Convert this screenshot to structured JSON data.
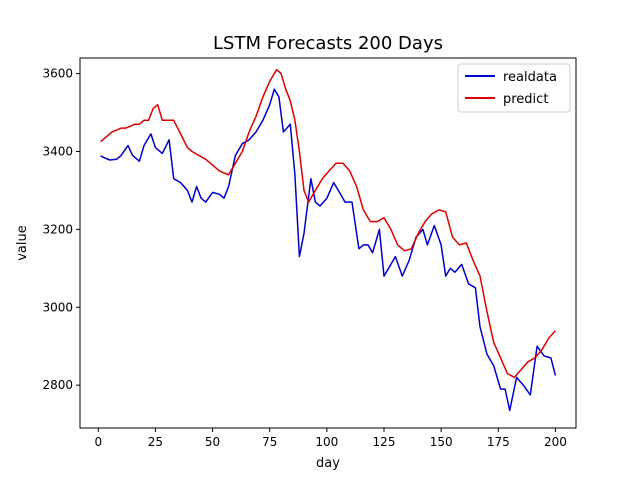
{
  "chart_data": {
    "type": "line",
    "title": "LSTM Forecasts 200 Days",
    "xlabel": "day",
    "ylabel": "value",
    "xlim": [
      -8,
      209
    ],
    "ylim": [
      2690,
      3640
    ],
    "xticks": [
      0,
      25,
      50,
      75,
      100,
      125,
      150,
      175,
      200
    ],
    "yticks": [
      2800,
      3000,
      3200,
      3400,
      3600
    ],
    "legend_position": "top-right",
    "series": [
      {
        "name": "realdata",
        "color": "#0000cc",
        "x": [
          1,
          5,
          8,
          10,
          13,
          15,
          18,
          20,
          23,
          25,
          28,
          31,
          33,
          36,
          39,
          41,
          43,
          45,
          47,
          50,
          53,
          55,
          57,
          60,
          63,
          66,
          69,
          72,
          75,
          77,
          79,
          81,
          84,
          86,
          88,
          90,
          93,
          95,
          97,
          100,
          103,
          106,
          108,
          111,
          114,
          116,
          118,
          120,
          123,
          125,
          127,
          130,
          133,
          136,
          139,
          142,
          144,
          147,
          150,
          152,
          154,
          156,
          159,
          162,
          165,
          167,
          170,
          173,
          176,
          178,
          180,
          183,
          186,
          189,
          192,
          195,
          198,
          200
        ],
        "y": [
          3388,
          3378,
          3380,
          3390,
          3415,
          3390,
          3375,
          3415,
          3445,
          3410,
          3395,
          3430,
          3330,
          3320,
          3300,
          3270,
          3310,
          3280,
          3270,
          3295,
          3290,
          3280,
          3310,
          3390,
          3420,
          3430,
          3450,
          3480,
          3520,
          3560,
          3540,
          3450,
          3470,
          3340,
          3130,
          3190,
          3330,
          3270,
          3260,
          3280,
          3320,
          3290,
          3270,
          3270,
          3150,
          3160,
          3160,
          3140,
          3200,
          3080,
          3100,
          3130,
          3080,
          3120,
          3180,
          3200,
          3160,
          3210,
          3160,
          3080,
          3100,
          3090,
          3110,
          3060,
          3050,
          2950,
          2880,
          2850,
          2790,
          2790,
          2735,
          2820,
          2800,
          2775,
          2900,
          2875,
          2870,
          2825
        ]
      },
      {
        "name": "predict",
        "color": "#dd0000",
        "x": [
          1,
          4,
          6,
          8,
          10,
          12,
          14,
          16,
          18,
          20,
          22,
          24,
          26,
          28,
          30,
          33,
          36,
          39,
          41,
          44,
          47,
          50,
          53,
          55,
          57,
          60,
          63,
          66,
          69,
          72,
          75,
          78,
          80,
          82,
          84,
          86,
          88,
          90,
          92,
          95,
          98,
          101,
          104,
          107,
          110,
          113,
          116,
          119,
          122,
          125,
          128,
          131,
          134,
          137,
          140,
          143,
          146,
          149,
          152,
          155,
          158,
          161,
          164,
          167,
          170,
          173,
          176,
          179,
          182,
          185,
          188,
          191,
          194,
          197,
          200
        ],
        "y": [
          3425,
          3440,
          3450,
          3455,
          3460,
          3460,
          3465,
          3470,
          3470,
          3480,
          3480,
          3510,
          3520,
          3480,
          3480,
          3480,
          3445,
          3410,
          3400,
          3390,
          3380,
          3365,
          3350,
          3345,
          3340,
          3370,
          3400,
          3450,
          3490,
          3540,
          3580,
          3610,
          3600,
          3560,
          3530,
          3480,
          3400,
          3300,
          3270,
          3300,
          3330,
          3350,
          3370,
          3370,
          3350,
          3310,
          3250,
          3220,
          3220,
          3230,
          3200,
          3160,
          3145,
          3150,
          3190,
          3220,
          3240,
          3250,
          3245,
          3180,
          3160,
          3165,
          3120,
          3080,
          2990,
          2910,
          2870,
          2830,
          2820,
          2840,
          2860,
          2870,
          2890,
          2920,
          2940
        ]
      }
    ]
  }
}
